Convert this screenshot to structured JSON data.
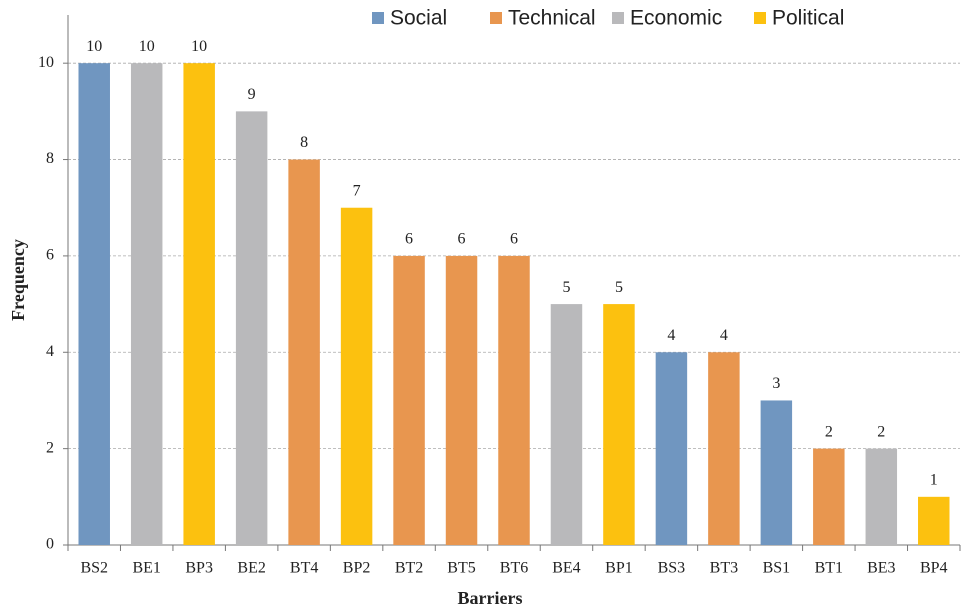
{
  "chart_data": {
    "type": "bar",
    "x_label": "Barriers",
    "y_label": "Frequency",
    "categories": [
      "BS2",
      "BE1",
      "BP3",
      "BE2",
      "BT4",
      "BP2",
      "BT2",
      "BT5",
      "BT6",
      "BE4",
      "BP1",
      "BS3",
      "BT3",
      "BS1",
      "BT1",
      "BE3",
      "BP4"
    ],
    "series": [
      {
        "name": "Social",
        "color": "#7096c0",
        "values": [
          10,
          null,
          null,
          null,
          null,
          null,
          null,
          null,
          null,
          null,
          null,
          4,
          null,
          3,
          null,
          null,
          null
        ]
      },
      {
        "name": "Technical",
        "color": "#e8964f",
        "values": [
          null,
          null,
          null,
          null,
          8,
          null,
          6,
          6,
          6,
          null,
          null,
          null,
          4,
          null,
          2,
          null,
          null
        ]
      },
      {
        "name": "Economic",
        "color": "#b9b9bb",
        "values": [
          null,
          10,
          null,
          9,
          null,
          null,
          null,
          null,
          null,
          5,
          null,
          null,
          null,
          null,
          null,
          2,
          null
        ]
      },
      {
        "name": "Political",
        "color": "#fcc10f",
        "values": [
          null,
          null,
          10,
          null,
          null,
          7,
          null,
          null,
          null,
          null,
          5,
          null,
          null,
          null,
          null,
          null,
          1
        ]
      }
    ],
    "ylim": [
      0,
      11
    ],
    "yticks": [
      0,
      2,
      4,
      6,
      8,
      10
    ],
    "grid": true,
    "legend": "top"
  }
}
